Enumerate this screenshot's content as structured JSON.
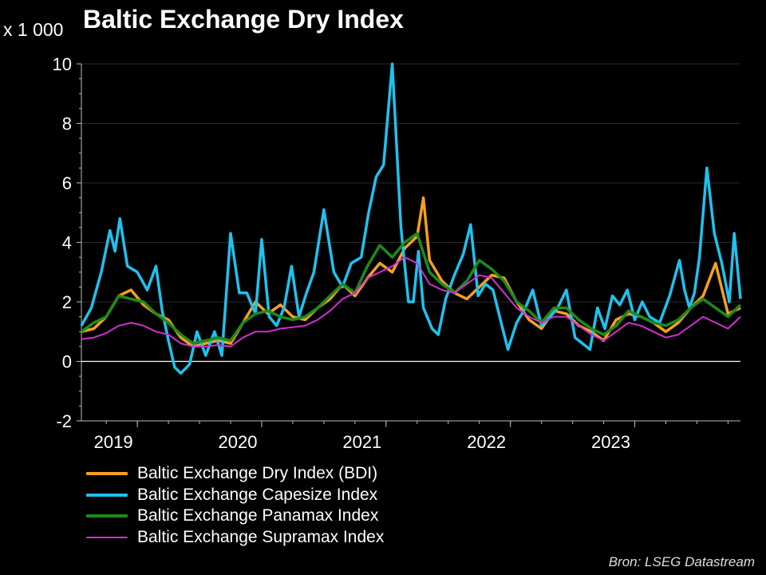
{
  "header": {
    "title": "Baltic Exchange Dry Index",
    "unit": "x 1 000"
  },
  "footer": {
    "source": "Bron: LSEG Datastream"
  },
  "chart_data": {
    "type": "line",
    "title": "Baltic Exchange Dry Index",
    "ylabel": "x 1 000",
    "xlabel": "",
    "ylim": [
      -2,
      10
    ],
    "xlim": [
      2018.55,
      2023.85
    ],
    "yticks": [
      -2,
      0,
      2,
      4,
      6,
      8,
      10
    ],
    "xticks": [
      {
        "label": "2019",
        "pos": 2019.0
      },
      {
        "label": "2020",
        "pos": 2020.0
      },
      {
        "label": "2021",
        "pos": 2021.0
      },
      {
        "label": "2022",
        "pos": 2022.0
      },
      {
        "label": "2023",
        "pos": 2023.0
      }
    ],
    "grid": true,
    "legend": "bottom-left",
    "series": [
      {
        "name": "Baltic Exchange Dry Index (BDI)",
        "color": "#f5a020",
        "width": 3.5,
        "x": [
          2018.55,
          2018.65,
          2018.75,
          2018.85,
          2018.95,
          2019.05,
          2019.15,
          2019.25,
          2019.35,
          2019.45,
          2019.55,
          2019.65,
          2019.75,
          2019.85,
          2019.95,
          2020.05,
          2020.15,
          2020.25,
          2020.35,
          2020.45,
          2020.55,
          2020.65,
          2020.75,
          2020.85,
          2020.95,
          2021.05,
          2021.15,
          2021.25,
          2021.3,
          2021.35,
          2021.45,
          2021.55,
          2021.65,
          2021.75,
          2021.85,
          2021.95,
          2022.05,
          2022.15,
          2022.25,
          2022.35,
          2022.45,
          2022.55,
          2022.65,
          2022.75,
          2022.85,
          2022.95,
          2023.05,
          2023.15,
          2023.25,
          2023.35,
          2023.45,
          2023.55,
          2023.65,
          2023.75,
          2023.85
        ],
        "y": [
          1.0,
          1.1,
          1.5,
          2.2,
          2.4,
          1.9,
          1.6,
          1.4,
          0.8,
          0.5,
          0.6,
          0.7,
          0.6,
          1.3,
          2.0,
          1.6,
          1.9,
          1.5,
          1.4,
          1.8,
          2.1,
          2.6,
          2.2,
          2.8,
          3.3,
          3.0,
          3.8,
          4.2,
          5.5,
          3.4,
          2.7,
          2.3,
          2.1,
          2.5,
          2.9,
          2.8,
          2.0,
          1.4,
          1.1,
          1.7,
          1.6,
          1.2,
          1.0,
          0.7,
          1.4,
          1.6,
          1.5,
          1.3,
          1.0,
          1.3,
          1.8,
          2.2,
          3.3,
          1.6,
          1.8
        ]
      },
      {
        "name": "Baltic Exchange Capesize Index",
        "color": "#1fc2ee",
        "width": 3.5,
        "x": [
          2018.55,
          2018.63,
          2018.71,
          2018.78,
          2018.82,
          2018.86,
          2018.92,
          2019.0,
          2019.08,
          2019.15,
          2019.2,
          2019.25,
          2019.3,
          2019.35,
          2019.42,
          2019.48,
          2019.55,
          2019.62,
          2019.68,
          2019.75,
          2019.82,
          2019.88,
          2019.95,
          2020.0,
          2020.06,
          2020.12,
          2020.18,
          2020.24,
          2020.3,
          2020.36,
          2020.42,
          2020.5,
          2020.58,
          2020.65,
          2020.72,
          2020.8,
          2020.86,
          2020.92,
          2020.98,
          2021.05,
          2021.12,
          2021.18,
          2021.22,
          2021.26,
          2021.3,
          2021.33,
          2021.37,
          2021.42,
          2021.48,
          2021.55,
          2021.62,
          2021.68,
          2021.74,
          2021.8,
          2021.86,
          2021.92,
          2021.98,
          2022.05,
          2022.12,
          2022.18,
          2022.25,
          2022.32,
          2022.38,
          2022.45,
          2022.52,
          2022.58,
          2022.64,
          2022.7,
          2022.76,
          2022.82,
          2022.88,
          2022.94,
          2023.0,
          2023.06,
          2023.12,
          2023.2,
          2023.28,
          2023.36,
          2023.4,
          2023.44,
          2023.48,
          2023.52,
          2023.58,
          2023.64,
          2023.7,
          2023.76,
          2023.8,
          2023.85
        ],
        "y": [
          1.2,
          1.8,
          3.0,
          4.4,
          3.7,
          4.8,
          3.2,
          3.0,
          2.4,
          3.2,
          1.7,
          0.7,
          -0.2,
          -0.4,
          -0.1,
          1.0,
          0.2,
          1.0,
          0.2,
          4.3,
          2.3,
          2.3,
          1.6,
          4.1,
          1.5,
          1.2,
          1.8,
          3.2,
          1.5,
          2.3,
          3.0,
          5.1,
          3.0,
          2.5,
          3.3,
          3.5,
          5.0,
          6.2,
          6.6,
          10.0,
          4.5,
          2.0,
          2.0,
          3.7,
          1.8,
          1.5,
          1.1,
          0.9,
          2.1,
          2.9,
          3.6,
          4.6,
          2.2,
          2.6,
          2.4,
          1.4,
          0.4,
          1.3,
          1.8,
          2.4,
          1.2,
          1.5,
          1.8,
          2.4,
          0.8,
          0.6,
          0.4,
          1.8,
          1.1,
          2.2,
          1.9,
          2.4,
          1.4,
          2.0,
          1.5,
          1.3,
          2.2,
          3.4,
          2.4,
          1.8,
          2.3,
          3.5,
          6.5,
          4.3,
          3.3,
          2.0,
          4.3,
          2.1
        ]
      },
      {
        "name": "Baltic Exchange Panamax Index",
        "color": "#1e8a1a",
        "width": 3.5,
        "x": [
          2018.55,
          2018.65,
          2018.75,
          2018.85,
          2018.95,
          2019.05,
          2019.15,
          2019.25,
          2019.35,
          2019.45,
          2019.55,
          2019.65,
          2019.75,
          2019.85,
          2019.95,
          2020.05,
          2020.15,
          2020.25,
          2020.35,
          2020.45,
          2020.55,
          2020.65,
          2020.75,
          2020.85,
          2020.95,
          2021.05,
          2021.15,
          2021.25,
          2021.35,
          2021.45,
          2021.55,
          2021.65,
          2021.75,
          2021.85,
          2021.95,
          2022.05,
          2022.15,
          2022.25,
          2022.35,
          2022.45,
          2022.55,
          2022.65,
          2022.75,
          2022.85,
          2022.95,
          2023.05,
          2023.15,
          2023.25,
          2023.35,
          2023.45,
          2023.55,
          2023.65,
          2023.75,
          2023.85
        ],
        "y": [
          1.0,
          1.3,
          1.5,
          2.2,
          2.1,
          2.0,
          1.6,
          1.3,
          0.9,
          0.6,
          0.7,
          0.8,
          0.7,
          1.3,
          1.6,
          1.7,
          1.5,
          1.4,
          1.5,
          1.8,
          2.2,
          2.6,
          2.3,
          3.2,
          3.9,
          3.5,
          4.0,
          4.3,
          3.0,
          2.6,
          2.3,
          2.7,
          3.4,
          3.1,
          2.7,
          2.0,
          1.7,
          1.3,
          1.8,
          1.8,
          1.4,
          1.1,
          0.9,
          1.2,
          1.7,
          1.5,
          1.3,
          1.2,
          1.4,
          1.8,
          2.1,
          1.8,
          1.5,
          1.9
        ]
      },
      {
        "name": "Baltic Exchange Supramax Index",
        "color": "#d12fd1",
        "width": 2,
        "x": [
          2018.55,
          2018.65,
          2018.75,
          2018.85,
          2018.95,
          2019.05,
          2019.15,
          2019.25,
          2019.35,
          2019.45,
          2019.55,
          2019.65,
          2019.75,
          2019.85,
          2019.95,
          2020.05,
          2020.15,
          2020.25,
          2020.35,
          2020.45,
          2020.55,
          2020.65,
          2020.75,
          2020.85,
          2020.95,
          2021.05,
          2021.15,
          2021.25,
          2021.35,
          2021.45,
          2021.55,
          2021.65,
          2021.75,
          2021.85,
          2021.95,
          2022.05,
          2022.15,
          2022.25,
          2022.35,
          2022.45,
          2022.55,
          2022.65,
          2022.75,
          2022.85,
          2022.95,
          2023.05,
          2023.15,
          2023.25,
          2023.35,
          2023.45,
          2023.55,
          2023.65,
          2023.75,
          2023.85
        ],
        "y": [
          0.75,
          0.8,
          0.95,
          1.2,
          1.3,
          1.2,
          1.0,
          0.9,
          0.6,
          0.5,
          0.5,
          0.55,
          0.5,
          0.8,
          1.0,
          1.0,
          1.1,
          1.15,
          1.2,
          1.4,
          1.7,
          2.1,
          2.3,
          2.8,
          3.0,
          3.2,
          3.5,
          3.3,
          2.6,
          2.4,
          2.3,
          2.6,
          2.9,
          2.8,
          2.3,
          1.8,
          1.5,
          1.3,
          1.5,
          1.5,
          1.2,
          0.9,
          0.7,
          1.0,
          1.3,
          1.2,
          1.0,
          0.8,
          0.9,
          1.2,
          1.5,
          1.3,
          1.1,
          1.5
        ]
      }
    ]
  }
}
